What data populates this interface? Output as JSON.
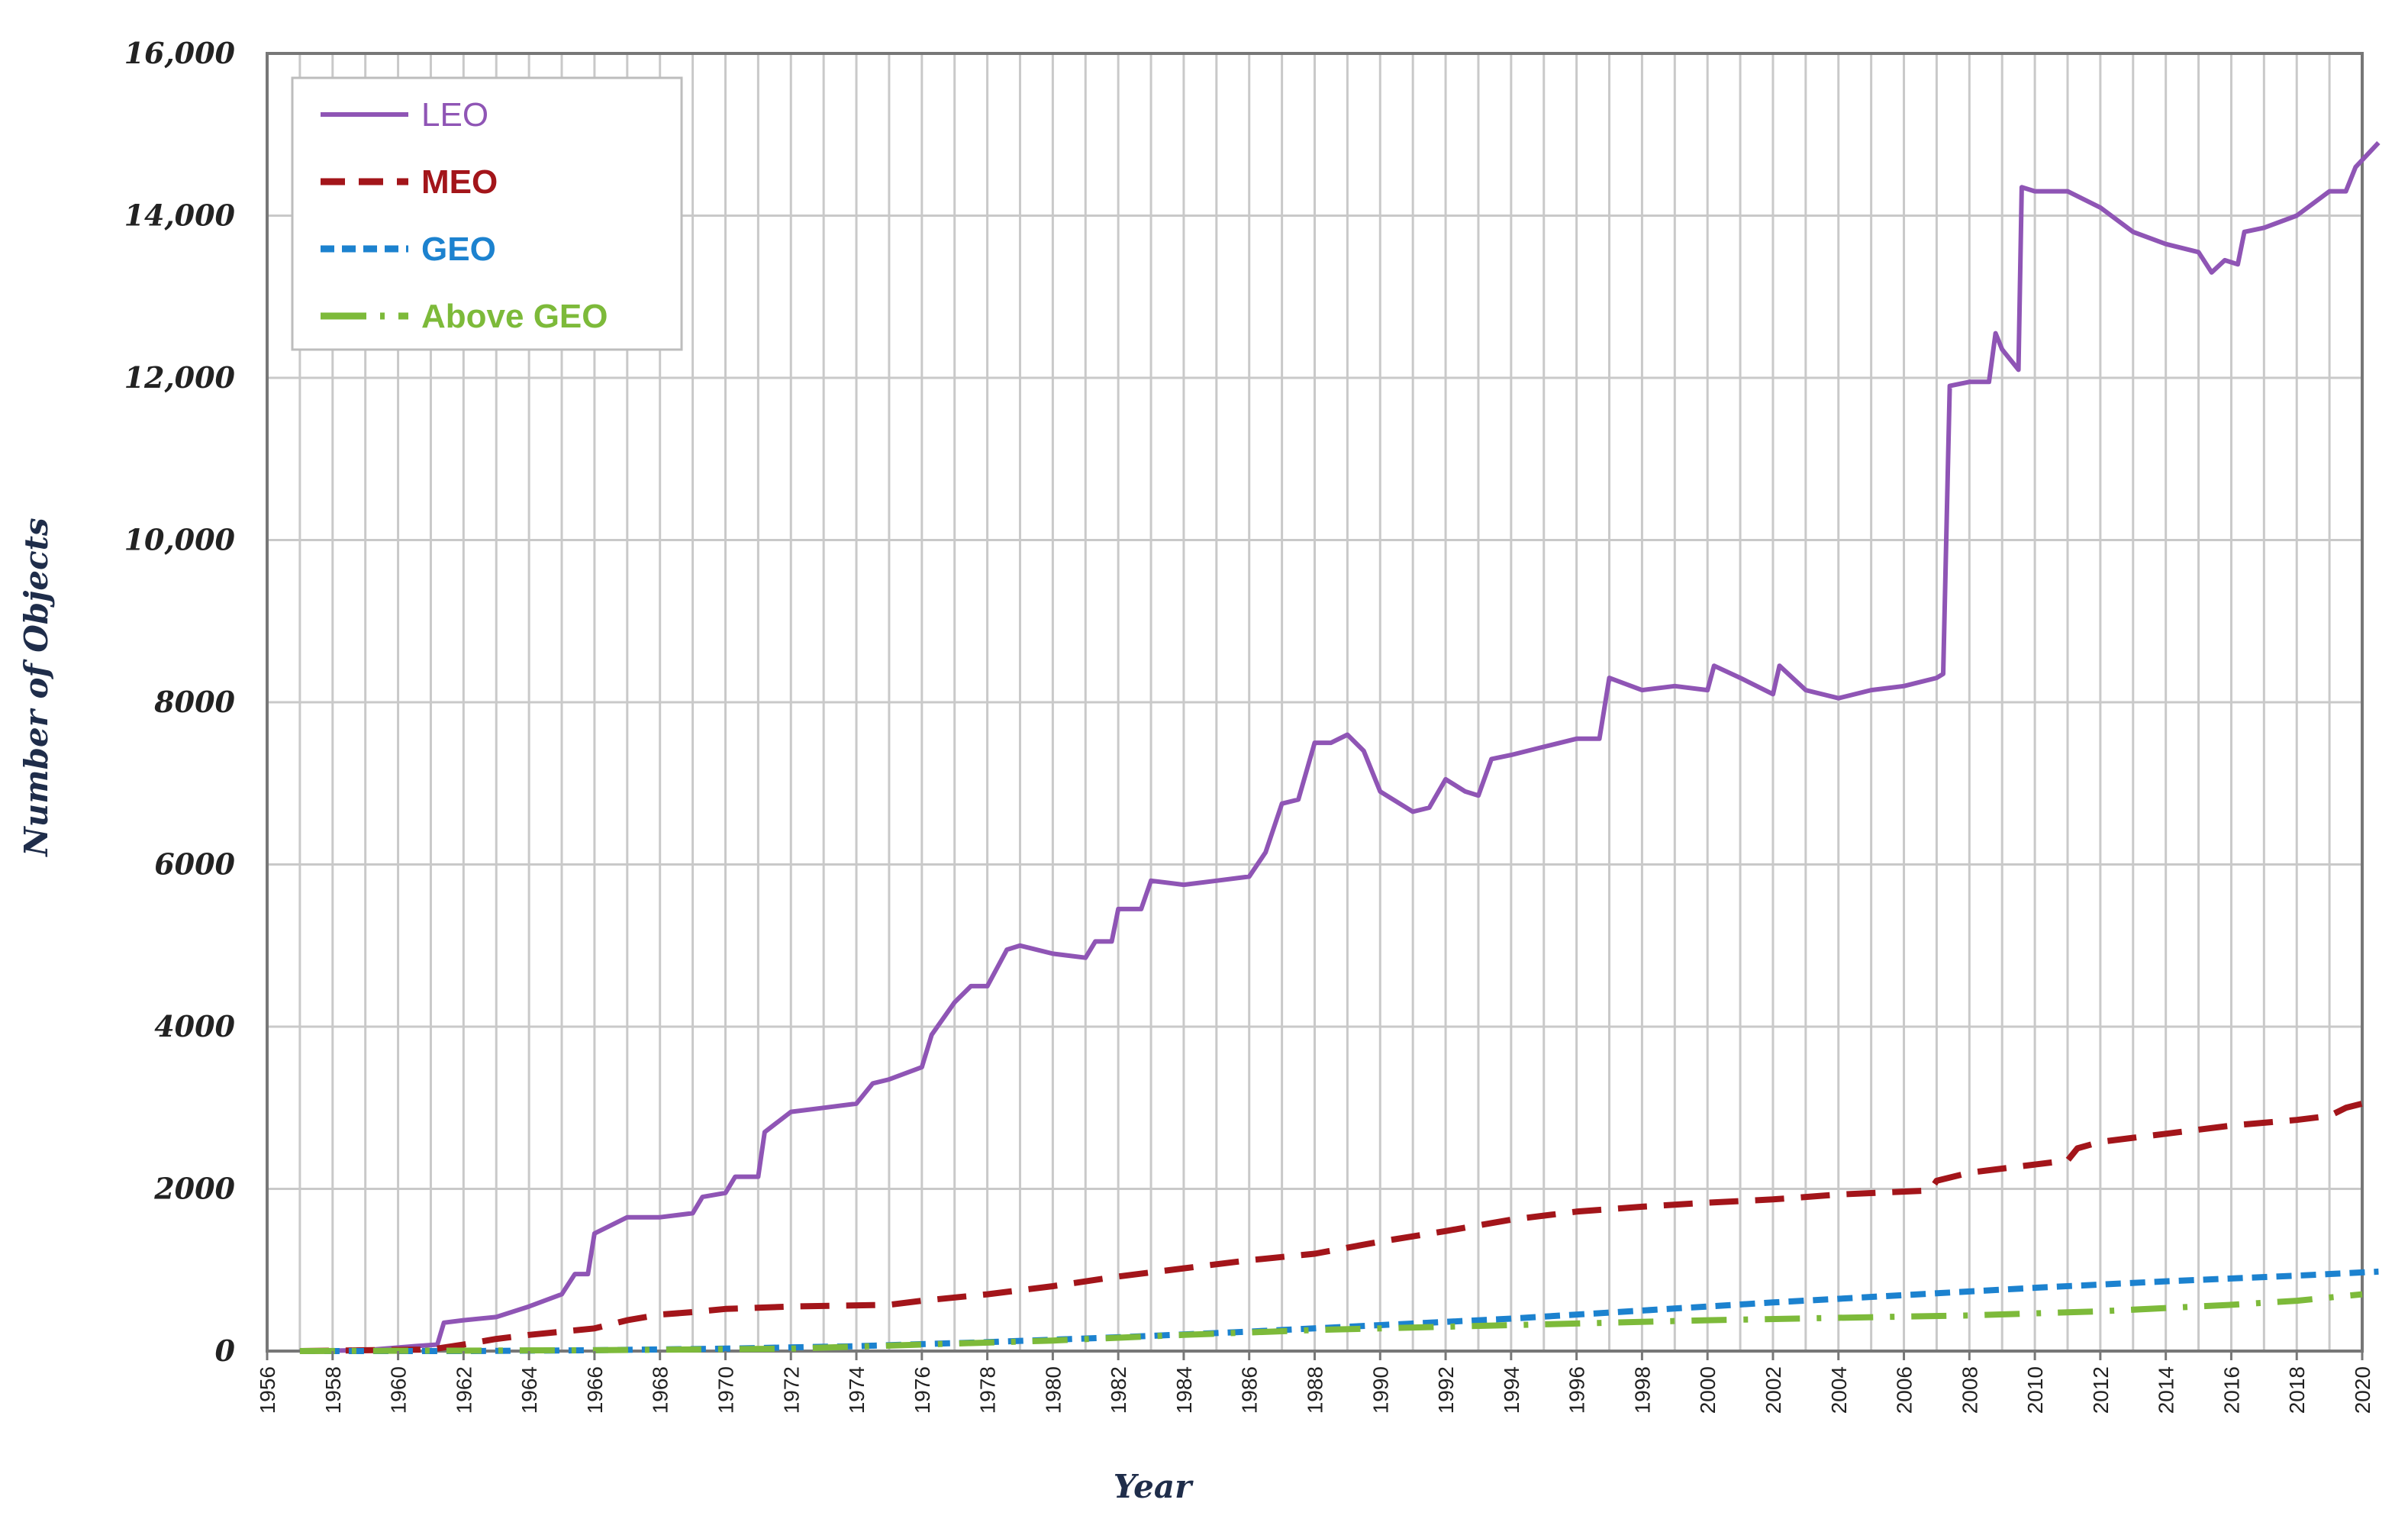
{
  "chart_data": {
    "type": "line",
    "title": "",
    "xlabel": "Year",
    "ylabel": "Number of Objects",
    "xlim": [
      1956,
      2020
    ],
    "ylim": [
      0,
      16000
    ],
    "grid": true,
    "legend_position": "top-left",
    "x_ticks": [
      "1956",
      "1958",
      "1960",
      "1962",
      "1964",
      "1966",
      "1968",
      "1970",
      "1972",
      "1974",
      "1976",
      "1978",
      "1980",
      "1982",
      "1984",
      "1986",
      "1988",
      "1990",
      "1992",
      "1994",
      "1996",
      "1998",
      "2000",
      "2002",
      "2004",
      "2006",
      "2008",
      "2010",
      "2012",
      "2014",
      "2016",
      "2018",
      "2020"
    ],
    "y_ticks": [
      {
        "value": 0,
        "label": "0"
      },
      {
        "value": 2000,
        "label": "2000"
      },
      {
        "value": 4000,
        "label": "4000"
      },
      {
        "value": 6000,
        "label": "6000"
      },
      {
        "value": 8000,
        "label": "8000"
      },
      {
        "value": 10000,
        "label": "10,000"
      },
      {
        "value": 12000,
        "label": "12,000"
      },
      {
        "value": 14000,
        "label": "14,000"
      },
      {
        "value": 16000,
        "label": "16,000"
      }
    ],
    "series": [
      {
        "name": "LEO",
        "color": "#8f55b5",
        "dash": "solid",
        "points": [
          [
            1957,
            0
          ],
          [
            1959,
            10
          ],
          [
            1960.5,
            60
          ],
          [
            1961.2,
            80
          ],
          [
            1961.4,
            350
          ],
          [
            1962,
            380
          ],
          [
            1963,
            420
          ],
          [
            1964,
            550
          ],
          [
            1965,
            700
          ],
          [
            1965.4,
            950
          ],
          [
            1965.8,
            950
          ],
          [
            1966,
            1450
          ],
          [
            1966.5,
            1550
          ],
          [
            1967,
            1650
          ],
          [
            1968,
            1650
          ],
          [
            1969,
            1700
          ],
          [
            1969.3,
            1900
          ],
          [
            1970,
            1950
          ],
          [
            1970.3,
            2150
          ],
          [
            1971,
            2150
          ],
          [
            1971.2,
            2700
          ],
          [
            1972,
            2950
          ],
          [
            1973,
            3000
          ],
          [
            1974,
            3050
          ],
          [
            1974.5,
            3300
          ],
          [
            1975,
            3350
          ],
          [
            1976,
            3500
          ],
          [
            1976.3,
            3900
          ],
          [
            1977,
            4300
          ],
          [
            1977.5,
            4500
          ],
          [
            1978,
            4500
          ],
          [
            1978.6,
            4950
          ],
          [
            1979,
            5000
          ],
          [
            1980,
            4900
          ],
          [
            1981,
            4850
          ],
          [
            1981.3,
            5050
          ],
          [
            1981.8,
            5050
          ],
          [
            1982,
            5450
          ],
          [
            1982.7,
            5450
          ],
          [
            1983,
            5800
          ],
          [
            1984,
            5750
          ],
          [
            1985,
            5800
          ],
          [
            1986,
            5850
          ],
          [
            1986.5,
            6150
          ],
          [
            1987,
            6750
          ],
          [
            1987.5,
            6800
          ],
          [
            1988,
            7500
          ],
          [
            1988.5,
            7500
          ],
          [
            1989,
            7600
          ],
          [
            1989.5,
            7400
          ],
          [
            1990,
            6900
          ],
          [
            1991,
            6650
          ],
          [
            1991.5,
            6700
          ],
          [
            1992,
            7050
          ],
          [
            1992.6,
            6900
          ],
          [
            1993,
            6850
          ],
          [
            1993.4,
            7300
          ],
          [
            1994,
            7350
          ],
          [
            1995,
            7450
          ],
          [
            1996,
            7550
          ],
          [
            1996.7,
            7550
          ],
          [
            1997,
            8300
          ],
          [
            1998,
            8150
          ],
          [
            1999,
            8200
          ],
          [
            2000,
            8150
          ],
          [
            2000.2,
            8450
          ],
          [
            2001,
            8300
          ],
          [
            2002,
            8100
          ],
          [
            2002.2,
            8450
          ],
          [
            2003,
            8150
          ],
          [
            2004,
            8050
          ],
          [
            2005,
            8150
          ],
          [
            2006,
            8200
          ],
          [
            2007,
            8300
          ],
          [
            2007.2,
            8350
          ],
          [
            2007.4,
            11900
          ],
          [
            2008,
            11950
          ],
          [
            2008.6,
            11950
          ],
          [
            2008.8,
            12550
          ],
          [
            2009,
            12350
          ],
          [
            2009.5,
            12100
          ],
          [
            2009.6,
            14350
          ],
          [
            2010,
            14300
          ],
          [
            2011,
            14300
          ],
          [
            2012,
            14100
          ],
          [
            2013,
            13800
          ],
          [
            2014,
            13650
          ],
          [
            2015,
            13550
          ],
          [
            2015.4,
            13300
          ],
          [
            2015.8,
            13450
          ],
          [
            2016.2,
            13400
          ],
          [
            2016.4,
            13800
          ],
          [
            2017,
            13850
          ],
          [
            2018,
            14000
          ],
          [
            2019,
            14300
          ],
          [
            2019.5,
            14300
          ],
          [
            2019.8,
            14600
          ],
          [
            2020.5,
            14900
          ]
        ]
      },
      {
        "name": "MEO",
        "color": "#a3151a",
        "dash": "long-dash",
        "points": [
          [
            1957,
            0
          ],
          [
            1961,
            20
          ],
          [
            1962,
            80
          ],
          [
            1963,
            150
          ],
          [
            1964,
            200
          ],
          [
            1966,
            280
          ],
          [
            1967,
            380
          ],
          [
            1968,
            450
          ],
          [
            1969,
            480
          ],
          [
            1970,
            520
          ],
          [
            1972,
            550
          ],
          [
            1975,
            570
          ],
          [
            1976,
            620
          ],
          [
            1978,
            700
          ],
          [
            1980,
            800
          ],
          [
            1982,
            920
          ],
          [
            1984,
            1020
          ],
          [
            1986,
            1120
          ],
          [
            1988,
            1200
          ],
          [
            1990,
            1350
          ],
          [
            1992,
            1480
          ],
          [
            1994,
            1620
          ],
          [
            1996,
            1720
          ],
          [
            1998,
            1780
          ],
          [
            2000,
            1830
          ],
          [
            2002,
            1870
          ],
          [
            2004,
            1930
          ],
          [
            2006.8,
            1980
          ],
          [
            2007,
            2100
          ],
          [
            2008,
            2200
          ],
          [
            2010,
            2300
          ],
          [
            2011,
            2350
          ],
          [
            2011.3,
            2500
          ],
          [
            2012,
            2580
          ],
          [
            2014,
            2680
          ],
          [
            2016,
            2780
          ],
          [
            2018,
            2850
          ],
          [
            2019,
            2900
          ],
          [
            2019.5,
            3000
          ],
          [
            2020,
            3050
          ]
        ]
      },
      {
        "name": "GEO",
        "color": "#1c82cf",
        "dash": "short-dash",
        "points": [
          [
            1957,
            0
          ],
          [
            1960,
            0
          ],
          [
            1962,
            0
          ],
          [
            1966,
            10
          ],
          [
            1970,
            30
          ],
          [
            1974,
            60
          ],
          [
            1978,
            110
          ],
          [
            1982,
            170
          ],
          [
            1986,
            240
          ],
          [
            1990,
            320
          ],
          [
            1994,
            400
          ],
          [
            1998,
            500
          ],
          [
            2002,
            600
          ],
          [
            2006,
            690
          ],
          [
            2010,
            780
          ],
          [
            2014,
            860
          ],
          [
            2018,
            930
          ],
          [
            2020.5,
            980
          ]
        ]
      },
      {
        "name": "Above GEO",
        "color": "#7dba3a",
        "dash": "dash-dot",
        "points": [
          [
            1957,
            0
          ],
          [
            1966,
            10
          ],
          [
            1972,
            30
          ],
          [
            1976,
            80
          ],
          [
            1980,
            130
          ],
          [
            1984,
            200
          ],
          [
            1988,
            260
          ],
          [
            1992,
            300
          ],
          [
            1996,
            340
          ],
          [
            2000,
            380
          ],
          [
            2004,
            410
          ],
          [
            2008,
            440
          ],
          [
            2012,
            490
          ],
          [
            2016,
            570
          ],
          [
            2018,
            620
          ],
          [
            2020,
            700
          ]
        ]
      }
    ]
  }
}
